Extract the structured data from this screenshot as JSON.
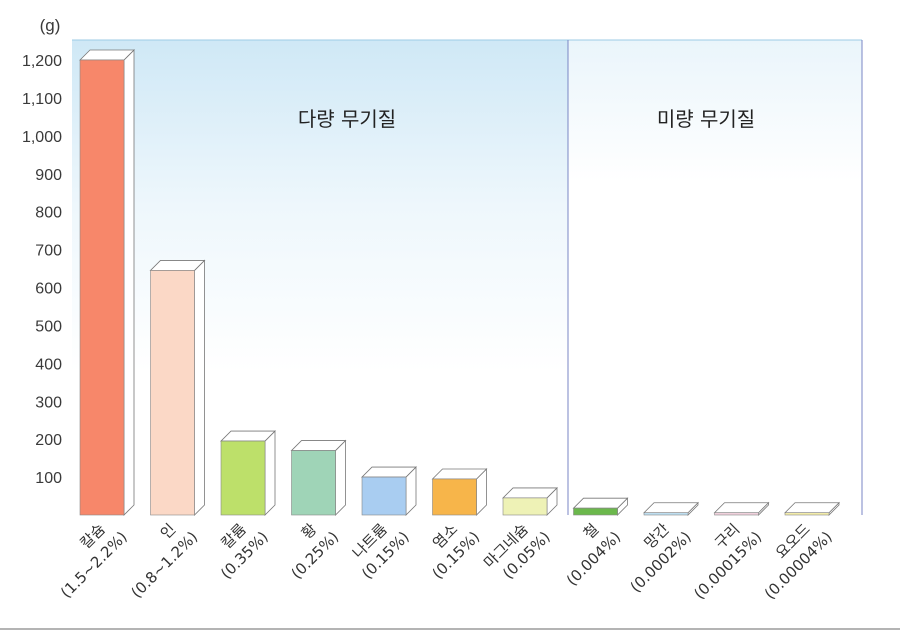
{
  "chart_data": {
    "type": "bar",
    "unit_label": "(g)",
    "regions": [
      {
        "label": "다량 무기질"
      },
      {
        "label": "미량 무기질"
      }
    ],
    "yticks": [
      100,
      200,
      300,
      400,
      500,
      600,
      700,
      800,
      900,
      1000,
      1100,
      1200
    ],
    "ytick_labels": [
      "100",
      "200",
      "300",
      "400",
      "500",
      "600",
      "700",
      "800",
      "900",
      "1,000",
      "1,100",
      "1,200"
    ],
    "ylim": [
      0,
      1250
    ],
    "categories": [
      {
        "name": "칼슘",
        "pct": "(1.5~2.2%)"
      },
      {
        "name": "인",
        "pct": "(0.8~1.2%)"
      },
      {
        "name": "칼륨",
        "pct": "(0.35%)"
      },
      {
        "name": "황",
        "pct": "(0.25%)"
      },
      {
        "name": "나트륨",
        "pct": "(0.15%)"
      },
      {
        "name": "염소",
        "pct": "(0.15%)"
      },
      {
        "name": "마그네슘",
        "pct": "(0.05%)"
      },
      {
        "name": "철",
        "pct": "(0.004%)"
      },
      {
        "name": "망간",
        "pct": "(0.0002%)"
      },
      {
        "name": "구리",
        "pct": "(0.00015%)"
      },
      {
        "name": "요오드",
        "pct": "(0.00004%)"
      }
    ],
    "values": [
      1200,
      645,
      195,
      170,
      100,
      95,
      45,
      18,
      6,
      6,
      6
    ],
    "colors": [
      "#f7876a",
      "#fbd8c6",
      "#bde06a",
      "#9fd4b7",
      "#a9cdf1",
      "#f7b54a",
      "#eef2b6",
      "#6bb84c",
      "#bfe0f3",
      "#f3d3df",
      "#f6efab"
    ],
    "grid": false,
    "legend": "none"
  }
}
